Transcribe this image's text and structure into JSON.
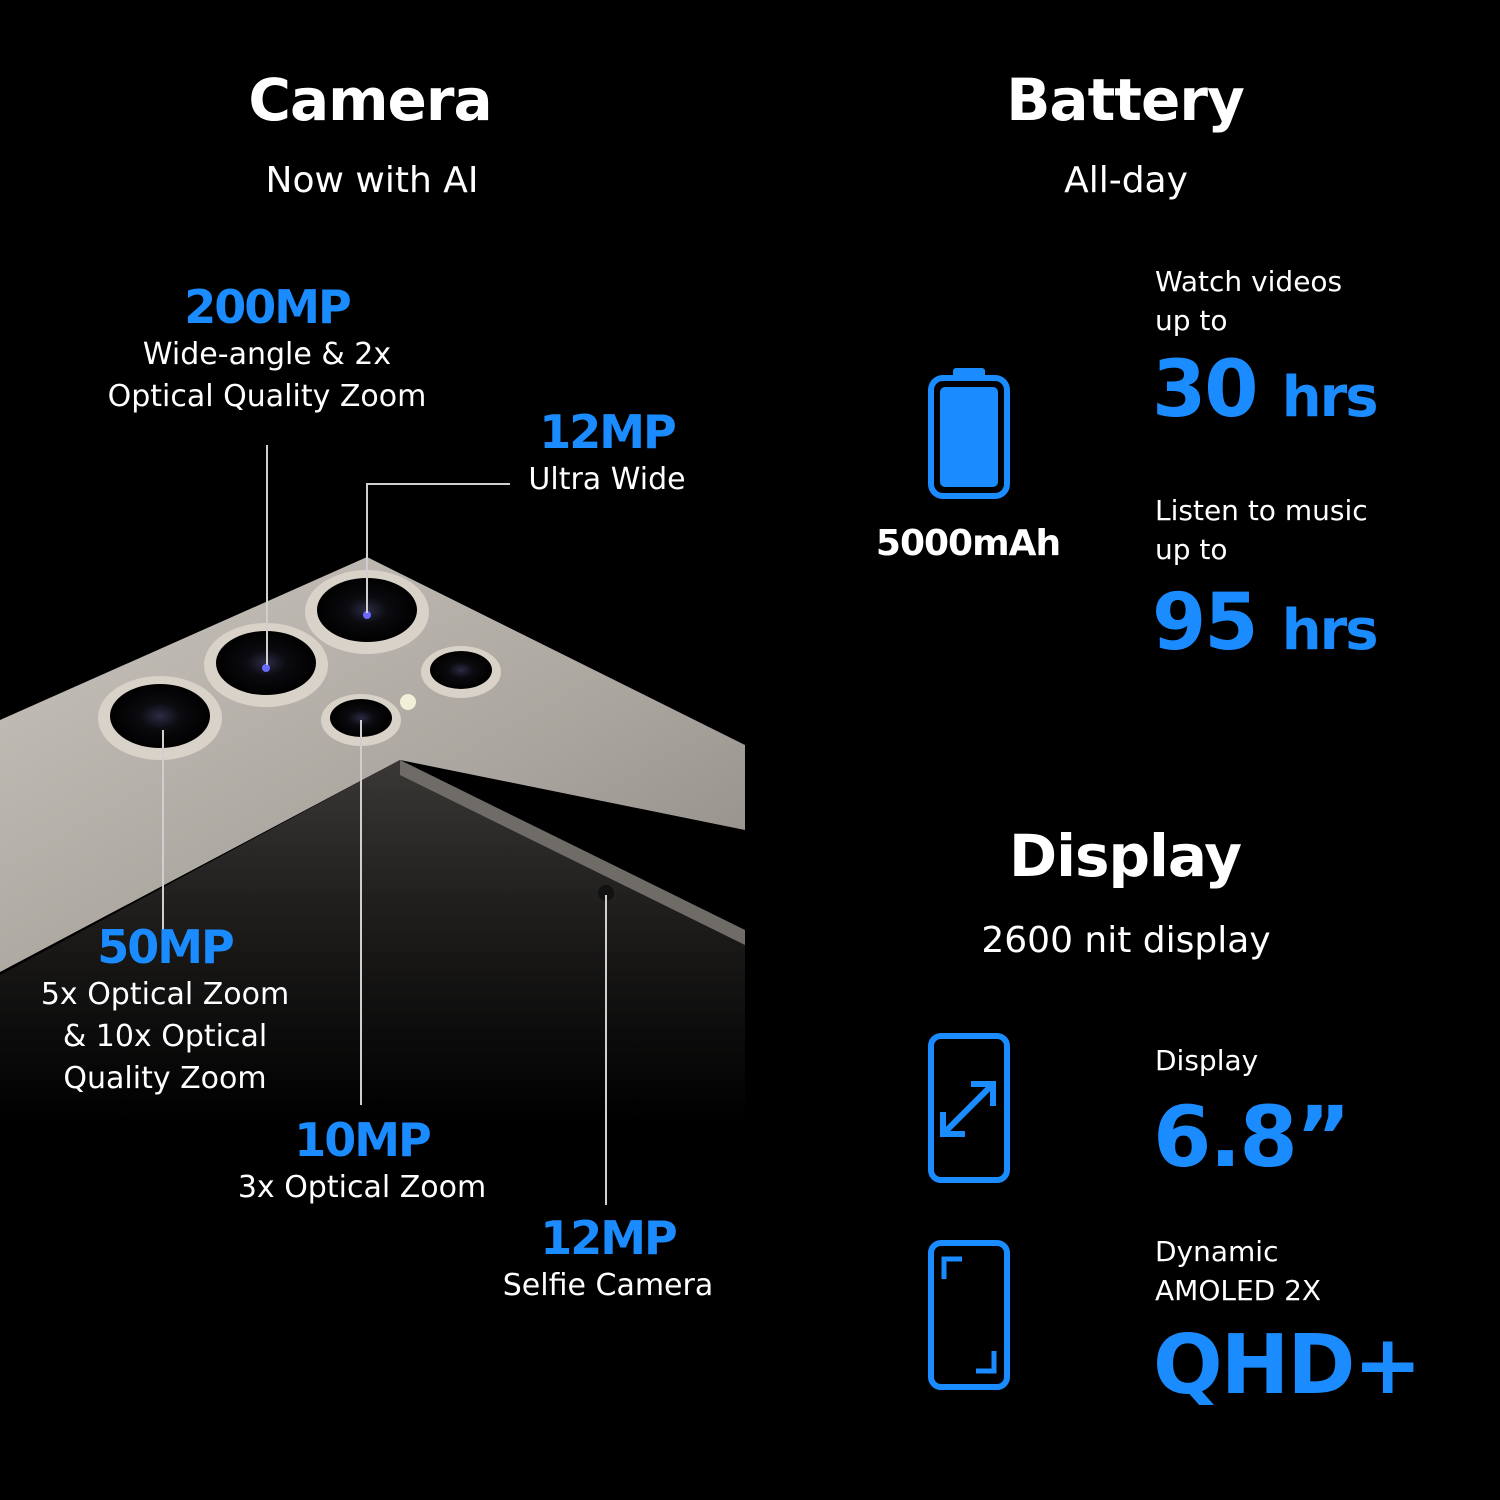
{
  "camera": {
    "title": "Camera",
    "subtitle": "Now with AI",
    "callouts": [
      {
        "mp": "200MP",
        "lines": [
          "Wide-angle & 2x",
          "Optical Quality Zoom"
        ]
      },
      {
        "mp": "12MP",
        "lines": [
          "Ultra Wide"
        ]
      },
      {
        "mp": "50MP",
        "lines": [
          "5x Optical Zoom",
          "& 10x Optical",
          "Quality Zoom"
        ]
      },
      {
        "mp": "10MP",
        "lines": [
          "3x Optical Zoom"
        ]
      },
      {
        "mp": "12MP",
        "lines": [
          "Selfie Camera"
        ]
      }
    ]
  },
  "battery": {
    "title": "Battery",
    "subtitle": "All-day",
    "icon": "battery-full-icon",
    "capacity": "5000mAh",
    "video": {
      "label1": "Watch videos",
      "label2": "up to",
      "value": "30",
      "unit": "hrs"
    },
    "music": {
      "label1": "Listen to music",
      "label2": "up to",
      "value": "95",
      "unit": "hrs"
    }
  },
  "display": {
    "title": "Display",
    "subtitle": "2600 nit display",
    "size": {
      "icon": "phone-diagonal-resize-icon",
      "label": "Display",
      "value": "6.8”"
    },
    "panel": {
      "icon": "phone-corners-icon",
      "label1": "Dynamic",
      "label2": "AMOLED 2X",
      "value": "QHD+"
    }
  },
  "colors": {
    "accent": "#1a8cff",
    "background": "#000000",
    "text": "#ffffff"
  }
}
